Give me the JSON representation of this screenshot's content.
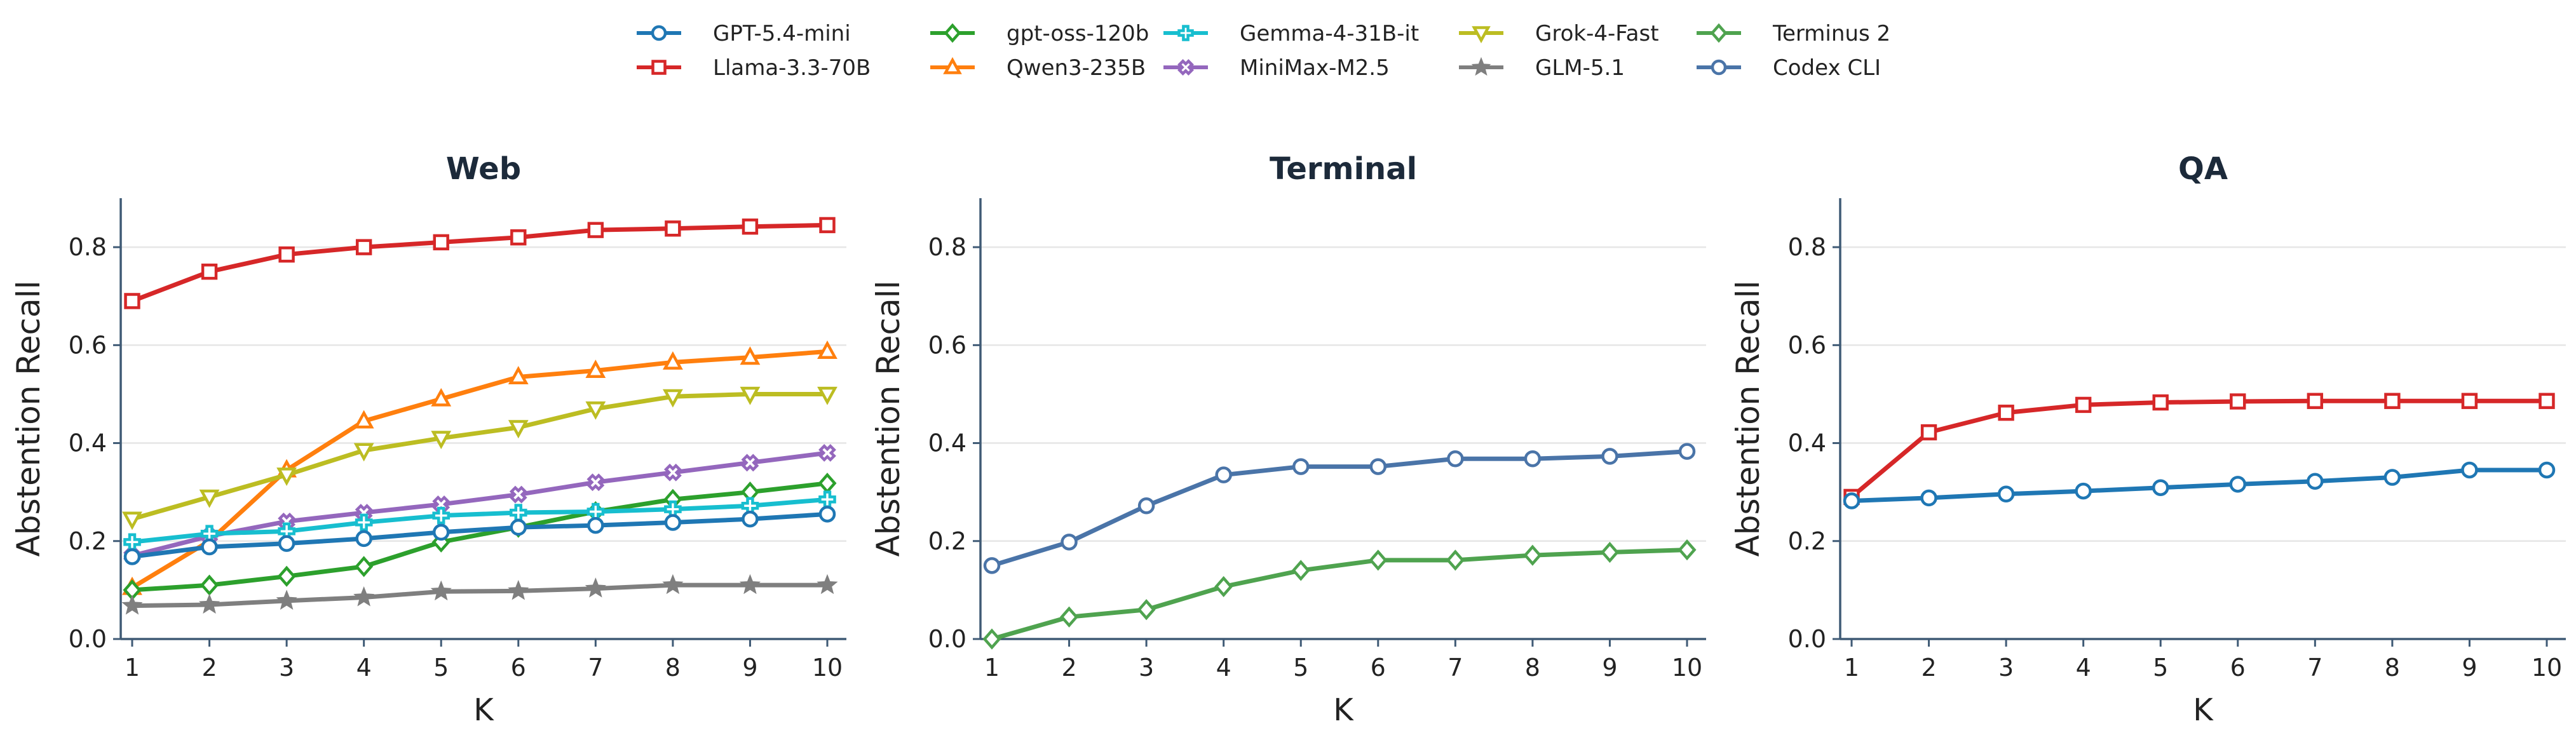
{
  "legend": {
    "entries": [
      {
        "name": "GPT-5.4-mini",
        "color": "#1f77b4",
        "marker": "circle"
      },
      {
        "name": "Llama-3.3-70B",
        "color": "#d62728",
        "marker": "square"
      },
      {
        "name": "gpt-oss-120b",
        "color": "#2ca02c",
        "marker": "diamond"
      },
      {
        "name": "Qwen3-235B",
        "color": "#ff7f0e",
        "marker": "triangle-up"
      },
      {
        "name": "Gemma-4-31B-it",
        "color": "#17becf",
        "marker": "plus"
      },
      {
        "name": "MiniMax-M2.5",
        "color": "#9467bd",
        "marker": "x"
      },
      {
        "name": "Grok-4-Fast",
        "color": "#bcbd22",
        "marker": "triangle-down"
      },
      {
        "name": "GLM-5.1",
        "color": "#7f7f7f",
        "marker": "star"
      },
      {
        "name": "Terminus 2",
        "color": "#4fa34f",
        "marker": "diamond"
      },
      {
        "name": "Codex CLI",
        "color": "#4a74a8",
        "marker": "circle"
      }
    ]
  },
  "chart_data": [
    {
      "type": "line",
      "title": "Web",
      "xlabel": "K",
      "ylabel": "Abstention Recall",
      "x": [
        1,
        2,
        3,
        4,
        5,
        6,
        7,
        8,
        9,
        10
      ],
      "xticks": [
        "1",
        "2",
        "3",
        "4",
        "5",
        "6",
        "7",
        "8",
        "9",
        "10"
      ],
      "yticks": [
        "0.0",
        "0.2",
        "0.4",
        "0.6",
        "0.8"
      ],
      "ylim": [
        0,
        0.9
      ],
      "grid": "horizontal",
      "series": [
        {
          "name": "Llama-3.3-70B",
          "values": [
            0.69,
            0.75,
            0.785,
            0.8,
            0.81,
            0.82,
            0.835,
            0.838,
            0.842,
            0.845
          ]
        },
        {
          "name": "Qwen3-235B",
          "values": [
            0.105,
            0.2,
            0.345,
            0.445,
            0.49,
            0.535,
            0.548,
            0.565,
            0.575,
            0.587
          ]
        },
        {
          "name": "Grok-4-Fast",
          "values": [
            0.245,
            0.29,
            0.335,
            0.385,
            0.41,
            0.432,
            0.47,
            0.495,
            0.5,
            0.5
          ]
        },
        {
          "name": "MiniMax-M2.5",
          "values": [
            0.17,
            0.21,
            0.24,
            0.258,
            0.275,
            0.295,
            0.32,
            0.34,
            0.36,
            0.38
          ]
        },
        {
          "name": "gpt-oss-120b",
          "values": [
            0.1,
            0.11,
            0.128,
            0.148,
            0.198,
            0.228,
            0.26,
            0.285,
            0.3,
            0.318
          ]
        },
        {
          "name": "Gemma-4-31B-it",
          "values": [
            0.198,
            0.215,
            0.22,
            0.238,
            0.252,
            0.258,
            0.26,
            0.265,
            0.272,
            0.285
          ]
        },
        {
          "name": "GPT-5.4-mini",
          "values": [
            0.168,
            0.188,
            0.195,
            0.205,
            0.218,
            0.228,
            0.232,
            0.238,
            0.245,
            0.255
          ]
        },
        {
          "name": "GLM-5.1",
          "values": [
            0.068,
            0.07,
            0.078,
            0.085,
            0.097,
            0.098,
            0.103,
            0.11,
            0.11,
            0.11
          ]
        }
      ]
    },
    {
      "type": "line",
      "title": "Terminal",
      "xlabel": "K",
      "ylabel": "Abstention Recall",
      "x": [
        1,
        2,
        3,
        4,
        5,
        6,
        7,
        8,
        9,
        10
      ],
      "xticks": [
        "1",
        "2",
        "3",
        "4",
        "5",
        "6",
        "7",
        "8",
        "9",
        "10"
      ],
      "yticks": [
        "0.0",
        "0.2",
        "0.4",
        "0.6",
        "0.8"
      ],
      "ylim": [
        0,
        0.9
      ],
      "grid": "horizontal",
      "series": [
        {
          "name": "Codex CLI",
          "values": [
            0.15,
            0.198,
            0.272,
            0.335,
            0.352,
            0.352,
            0.368,
            0.368,
            0.373,
            0.383
          ]
        },
        {
          "name": "Terminus 2",
          "values": [
            0.0,
            0.045,
            0.06,
            0.107,
            0.14,
            0.161,
            0.161,
            0.171,
            0.177,
            0.182
          ]
        }
      ]
    },
    {
      "type": "line",
      "title": "QA",
      "xlabel": "K",
      "ylabel": "Abstention Recall",
      "x": [
        1,
        2,
        3,
        4,
        5,
        6,
        7,
        8,
        9,
        10
      ],
      "xticks": [
        "1",
        "2",
        "3",
        "4",
        "5",
        "6",
        "7",
        "8",
        "9",
        "10"
      ],
      "yticks": [
        "0.0",
        "0.2",
        "0.4",
        "0.6",
        "0.8"
      ],
      "ylim": [
        0,
        0.9
      ],
      "grid": "horizontal",
      "series": [
        {
          "name": "Llama-3.3-70B",
          "values": [
            0.29,
            0.422,
            0.462,
            0.478,
            0.483,
            0.485,
            0.486,
            0.486,
            0.486,
            0.486
          ]
        },
        {
          "name": "GPT-5.4-mini",
          "values": [
            0.282,
            0.288,
            0.296,
            0.302,
            0.309,
            0.316,
            0.322,
            0.33,
            0.345,
            0.345
          ]
        }
      ]
    }
  ]
}
